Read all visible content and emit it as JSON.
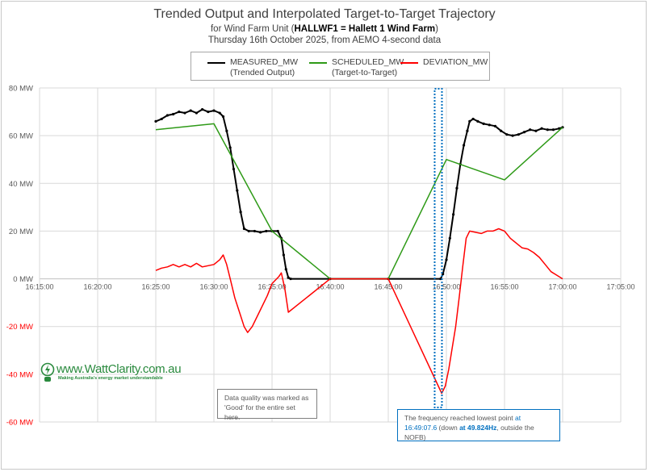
{
  "chart_data": {
    "type": "line",
    "title": "Trended Output and Interpolated Target-to-Target Trajectory",
    "subtitle_prefix": "for Wind Farm Unit (",
    "subtitle_bold": "HALLWF1 = Hallett 1 Wind Farm",
    "subtitle_suffix": ")",
    "subtitle2": "Thursday 16th October 2025, from AEMO 4-second data",
    "xlabel": "",
    "ylabel": "",
    "x_ticks": [
      "16:15:00",
      "16:20:00",
      "16:25:00",
      "16:30:00",
      "16:35:00",
      "16:40:00",
      "16:45:00",
      "16:50:00",
      "16:55:00",
      "17:00:00",
      "17:05:00"
    ],
    "xlim_minutes_after_1615": [
      0,
      50
    ],
    "y_ticks": [
      {
        "v": 80,
        "label": "80 MW"
      },
      {
        "v": 60,
        "label": "60 MW"
      },
      {
        "v": 40,
        "label": "40 MW"
      },
      {
        "v": 20,
        "label": "20 MW"
      },
      {
        "v": 0,
        "label": "0 MW"
      },
      {
        "v": -20,
        "label": "-20 MW"
      },
      {
        "v": -40,
        "label": "-40 MW"
      },
      {
        "v": -60,
        "label": "-60 MW"
      }
    ],
    "ylim": [
      -60,
      80
    ],
    "grid": true,
    "legend_position": "top-center",
    "series": [
      {
        "name": "MEASURED_MW",
        "desc": "(Trended Output)",
        "color": "#000000",
        "markers": true,
        "points": [
          [
            10,
            66
          ],
          [
            10.5,
            67
          ],
          [
            11,
            68.5
          ],
          [
            11.5,
            69
          ],
          [
            12,
            70
          ],
          [
            12.5,
            69.5
          ],
          [
            13,
            70.5
          ],
          [
            13.5,
            69.5
          ],
          [
            14,
            71
          ],
          [
            14.5,
            70
          ],
          [
            15,
            70.5
          ],
          [
            15.5,
            69.5
          ],
          [
            15.8,
            68
          ],
          [
            16.1,
            62
          ],
          [
            16.4,
            55
          ],
          [
            16.7,
            46
          ],
          [
            17,
            37
          ],
          [
            17.3,
            28
          ],
          [
            17.6,
            21
          ],
          [
            18,
            20
          ],
          [
            18.5,
            20
          ],
          [
            19,
            19.5
          ],
          [
            19.5,
            20
          ],
          [
            20,
            20
          ],
          [
            20.5,
            20
          ],
          [
            20.8,
            17
          ],
          [
            21,
            10
          ],
          [
            21.2,
            4
          ],
          [
            21.4,
            0.5
          ],
          [
            21.6,
            0
          ],
          [
            25,
            0
          ],
          [
            30,
            0
          ],
          [
            34.5,
            0
          ],
          [
            34.7,
            2
          ],
          [
            35,
            8
          ],
          [
            35.3,
            17
          ],
          [
            35.6,
            27
          ],
          [
            35.9,
            38
          ],
          [
            36.2,
            48
          ],
          [
            36.5,
            56
          ],
          [
            36.8,
            62
          ],
          [
            37,
            66
          ],
          [
            37.3,
            67
          ],
          [
            37.7,
            66
          ],
          [
            38.2,
            65
          ],
          [
            38.7,
            64.5
          ],
          [
            39.2,
            64
          ],
          [
            39.7,
            62
          ],
          [
            40.2,
            60.5
          ],
          [
            40.7,
            60
          ],
          [
            41.2,
            60.5
          ],
          [
            41.7,
            61.5
          ],
          [
            42.2,
            62.5
          ],
          [
            42.7,
            62
          ],
          [
            43.2,
            63
          ],
          [
            43.7,
            62.5
          ],
          [
            44.2,
            62.5
          ],
          [
            44.7,
            63
          ],
          [
            45,
            63.5
          ]
        ]
      },
      {
        "name": "SCHEDULED_MW",
        "desc": "(Target-to-Target)",
        "color": "#2e9a17",
        "markers": false,
        "points": [
          [
            10,
            62.5
          ],
          [
            15,
            65
          ],
          [
            20,
            20
          ],
          [
            25,
            0
          ],
          [
            30,
            0
          ],
          [
            35,
            50
          ],
          [
            40,
            41.5
          ],
          [
            45,
            63.5
          ]
        ]
      },
      {
        "name": "DEVIATION_MW",
        "desc": "",
        "color": "#ff0000",
        "markers": false,
        "points": [
          [
            10,
            3.5
          ],
          [
            10.5,
            4.5
          ],
          [
            11,
            5
          ],
          [
            11.5,
            6
          ],
          [
            12,
            5
          ],
          [
            12.5,
            6
          ],
          [
            13,
            5
          ],
          [
            13.5,
            6.5
          ],
          [
            14,
            5
          ],
          [
            14.5,
            5.5
          ],
          [
            15,
            6
          ],
          [
            15.5,
            8
          ],
          [
            15.8,
            10
          ],
          [
            16.1,
            6
          ],
          [
            16.4,
            0
          ],
          [
            16.8,
            -8
          ],
          [
            17.2,
            -14
          ],
          [
            17.6,
            -20
          ],
          [
            17.9,
            -22.5
          ],
          [
            18.3,
            -20
          ],
          [
            19,
            -13
          ],
          [
            19.6,
            -7
          ],
          [
            20,
            -2
          ],
          [
            20.6,
            1
          ],
          [
            20.8,
            2.5
          ],
          [
            21.1,
            -4
          ],
          [
            21.4,
            -14
          ],
          [
            25,
            0
          ],
          [
            30,
            0
          ],
          [
            34.6,
            -48
          ],
          [
            34.9,
            -45
          ],
          [
            35.2,
            -38
          ],
          [
            35.5,
            -29
          ],
          [
            35.8,
            -20
          ],
          [
            36.1,
            -8
          ],
          [
            36.4,
            5
          ],
          [
            36.7,
            17
          ],
          [
            37,
            20
          ],
          [
            37.5,
            19.5
          ],
          [
            38,
            19
          ],
          [
            38.5,
            20
          ],
          [
            39,
            20
          ],
          [
            39.5,
            21
          ],
          [
            40,
            20
          ],
          [
            40.5,
            17
          ],
          [
            41,
            15
          ],
          [
            41.5,
            13
          ],
          [
            42,
            12.5
          ],
          [
            42.5,
            11
          ],
          [
            43,
            9
          ],
          [
            43.5,
            6
          ],
          [
            44,
            3
          ],
          [
            44.5,
            1.5
          ],
          [
            45,
            0
          ]
        ]
      }
    ],
    "annotations": {
      "frequency_marker_time": "16:49:07.6",
      "frequency_marker_minutes_after_1615": 34.13,
      "data_quality_note": "Data quality was marked as 'Good' for the entire set here.",
      "freq_note_a": "The frequency reached lowest point ",
      "freq_note_b": "at 16:49:07.6",
      "freq_note_c": " (down ",
      "freq_note_d": "at 49.824Hz",
      "freq_note_e": ", outside the NOFB)"
    }
  },
  "logo": {
    "url": "www.WattClarity.com.au",
    "tagline": "Making Australia's energy market understandable",
    "color": "#2a8a3e"
  },
  "colors": {
    "grid": "#d9d9d9",
    "axis": "#bfbfbf",
    "annotation_blue": "#0070c0"
  }
}
